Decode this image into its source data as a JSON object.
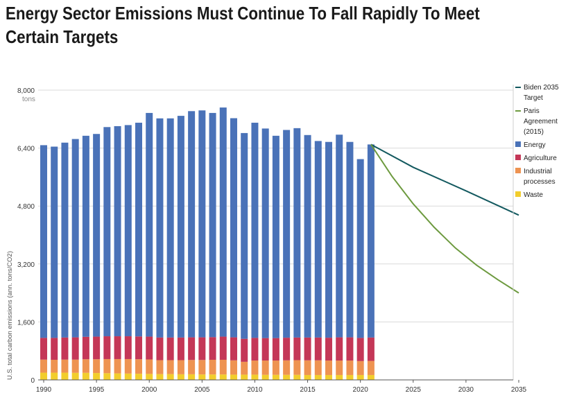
{
  "title": "Energy Sector Emissions Must Continue To Fall Rapidly To Meet Certain Targets",
  "chart_data": {
    "type": "bar",
    "ylabel": "U.S. total carbon emissions (ann. tons/CO2)",
    "yunit": "tons",
    "ylim": [
      0,
      8000
    ],
    "yticks": [
      0,
      1600,
      3200,
      4800,
      6400,
      8000
    ],
    "yticklabels": [
      "0",
      "1,600",
      "3,200",
      "4,800",
      "6,400",
      "8,000"
    ],
    "xlim": [
      1990,
      2035
    ],
    "xticks": [
      1990,
      1995,
      2000,
      2005,
      2010,
      2015,
      2020,
      2025,
      2030,
      2035
    ],
    "grid": true,
    "legend_position": "right",
    "years": [
      1990,
      1991,
      1992,
      1993,
      1994,
      1995,
      1996,
      1997,
      1998,
      1999,
      2000,
      2001,
      2002,
      2003,
      2004,
      2005,
      2006,
      2007,
      2008,
      2009,
      2010,
      2011,
      2012,
      2013,
      2014,
      2015,
      2016,
      2017,
      2018,
      2019,
      2020,
      2021
    ],
    "series": [
      {
        "name": "Waste",
        "color": "#f2cd2c",
        "values": [
          200,
          200,
          200,
          195,
          195,
          190,
          185,
          180,
          175,
          170,
          165,
          160,
          160,
          155,
          155,
          150,
          150,
          150,
          145,
          145,
          145,
          140,
          140,
          140,
          140,
          135,
          135,
          135,
          135,
          135,
          135,
          135
        ]
      },
      {
        "name": "Industrial processes",
        "color": "#ee9351",
        "values": [
          360,
          355,
          360,
          365,
          375,
          380,
          390,
          395,
          400,
          400,
          400,
          385,
          385,
          390,
          395,
          400,
          405,
          405,
          395,
          355,
          390,
          395,
          395,
          400,
          405,
          405,
          405,
          400,
          400,
          400,
          385,
          390
        ]
      },
      {
        "name": "Agriculture",
        "color": "#c43757",
        "values": [
          600,
          605,
          610,
          615,
          620,
          625,
          630,
          630,
          630,
          630,
          630,
          625,
          625,
          625,
          625,
          625,
          625,
          640,
          635,
          635,
          625,
          620,
          620,
          625,
          625,
          630,
          630,
          630,
          640,
          640,
          640,
          645
        ]
      },
      {
        "name": "Energy",
        "color": "#4a72b8",
        "values": [
          5320,
          5280,
          5380,
          5475,
          5550,
          5595,
          5775,
          5800,
          5830,
          5900,
          6175,
          6050,
          6050,
          6120,
          6245,
          6265,
          6190,
          6325,
          6050,
          5680,
          5940,
          5785,
          5585,
          5735,
          5780,
          5590,
          5425,
          5405,
          5595,
          5395,
          4935,
          5330
        ]
      }
    ],
    "lines": [
      {
        "name": "Biden 2035 Target",
        "color": "#13595f",
        "x": [
          2021,
          2025,
          2030,
          2035
        ],
        "y": [
          6500,
          5870,
          5220,
          4550
        ]
      },
      {
        "name": "Paris Agreement (2015)",
        "color": "#6d9a3f",
        "x": [
          2021,
          2023,
          2025,
          2027,
          2029,
          2031,
          2033,
          2035
        ],
        "y": [
          6500,
          5620,
          4860,
          4210,
          3640,
          3170,
          2770,
          2400
        ]
      }
    ],
    "legend": [
      {
        "label": "Biden 2035 Target",
        "kind": "line",
        "color": "#13595f"
      },
      {
        "label": "Paris Agreement (2015)",
        "kind": "line",
        "color": "#6d9a3f"
      },
      {
        "label": "Energy",
        "kind": "box",
        "color": "#4a72b8"
      },
      {
        "label": "Agriculture",
        "kind": "box",
        "color": "#c43757"
      },
      {
        "label": "Industrial processes",
        "kind": "box",
        "color": "#ee9351"
      },
      {
        "label": "Waste",
        "kind": "box",
        "color": "#f2cd2c"
      }
    ]
  }
}
